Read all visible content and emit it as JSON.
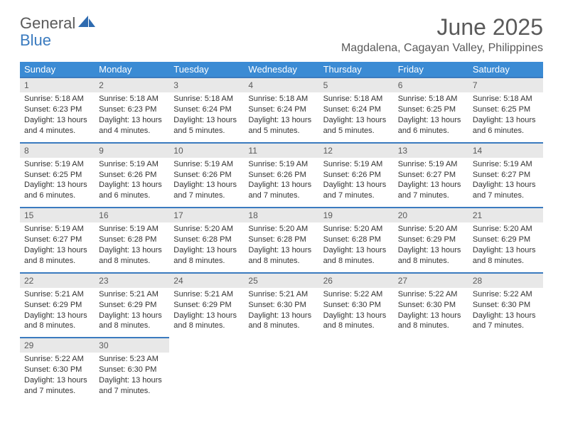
{
  "logo": {
    "word1": "General",
    "word2": "Blue"
  },
  "title": "June 2025",
  "location": "Magdalena, Cagayan Valley, Philippines",
  "headers": [
    "Sunday",
    "Monday",
    "Tuesday",
    "Wednesday",
    "Thursday",
    "Friday",
    "Saturday"
  ],
  "colors": {
    "header_bg": "#3b8bd4",
    "header_text": "#ffffff",
    "rule": "#3b7bbf",
    "daynum_bg": "#e8e8e8",
    "text": "#333333",
    "title_text": "#5a5a5a",
    "logo_gray": "#5a5a5a",
    "logo_blue": "#3b7bbf"
  },
  "weeks": [
    [
      {
        "n": "1",
        "sr": "5:18 AM",
        "ss": "6:23 PM",
        "dl": "13 hours and 4 minutes."
      },
      {
        "n": "2",
        "sr": "5:18 AM",
        "ss": "6:23 PM",
        "dl": "13 hours and 4 minutes."
      },
      {
        "n": "3",
        "sr": "5:18 AM",
        "ss": "6:24 PM",
        "dl": "13 hours and 5 minutes."
      },
      {
        "n": "4",
        "sr": "5:18 AM",
        "ss": "6:24 PM",
        "dl": "13 hours and 5 minutes."
      },
      {
        "n": "5",
        "sr": "5:18 AM",
        "ss": "6:24 PM",
        "dl": "13 hours and 5 minutes."
      },
      {
        "n": "6",
        "sr": "5:18 AM",
        "ss": "6:25 PM",
        "dl": "13 hours and 6 minutes."
      },
      {
        "n": "7",
        "sr": "5:18 AM",
        "ss": "6:25 PM",
        "dl": "13 hours and 6 minutes."
      }
    ],
    [
      {
        "n": "8",
        "sr": "5:19 AM",
        "ss": "6:25 PM",
        "dl": "13 hours and 6 minutes."
      },
      {
        "n": "9",
        "sr": "5:19 AM",
        "ss": "6:26 PM",
        "dl": "13 hours and 6 minutes."
      },
      {
        "n": "10",
        "sr": "5:19 AM",
        "ss": "6:26 PM",
        "dl": "13 hours and 7 minutes."
      },
      {
        "n": "11",
        "sr": "5:19 AM",
        "ss": "6:26 PM",
        "dl": "13 hours and 7 minutes."
      },
      {
        "n": "12",
        "sr": "5:19 AM",
        "ss": "6:26 PM",
        "dl": "13 hours and 7 minutes."
      },
      {
        "n": "13",
        "sr": "5:19 AM",
        "ss": "6:27 PM",
        "dl": "13 hours and 7 minutes."
      },
      {
        "n": "14",
        "sr": "5:19 AM",
        "ss": "6:27 PM",
        "dl": "13 hours and 7 minutes."
      }
    ],
    [
      {
        "n": "15",
        "sr": "5:19 AM",
        "ss": "6:27 PM",
        "dl": "13 hours and 8 minutes."
      },
      {
        "n": "16",
        "sr": "5:19 AM",
        "ss": "6:28 PM",
        "dl": "13 hours and 8 minutes."
      },
      {
        "n": "17",
        "sr": "5:20 AM",
        "ss": "6:28 PM",
        "dl": "13 hours and 8 minutes."
      },
      {
        "n": "18",
        "sr": "5:20 AM",
        "ss": "6:28 PM",
        "dl": "13 hours and 8 minutes."
      },
      {
        "n": "19",
        "sr": "5:20 AM",
        "ss": "6:28 PM",
        "dl": "13 hours and 8 minutes."
      },
      {
        "n": "20",
        "sr": "5:20 AM",
        "ss": "6:29 PM",
        "dl": "13 hours and 8 minutes."
      },
      {
        "n": "21",
        "sr": "5:20 AM",
        "ss": "6:29 PM",
        "dl": "13 hours and 8 minutes."
      }
    ],
    [
      {
        "n": "22",
        "sr": "5:21 AM",
        "ss": "6:29 PM",
        "dl": "13 hours and 8 minutes."
      },
      {
        "n": "23",
        "sr": "5:21 AM",
        "ss": "6:29 PM",
        "dl": "13 hours and 8 minutes."
      },
      {
        "n": "24",
        "sr": "5:21 AM",
        "ss": "6:29 PM",
        "dl": "13 hours and 8 minutes."
      },
      {
        "n": "25",
        "sr": "5:21 AM",
        "ss": "6:30 PM",
        "dl": "13 hours and 8 minutes."
      },
      {
        "n": "26",
        "sr": "5:22 AM",
        "ss": "6:30 PM",
        "dl": "13 hours and 8 minutes."
      },
      {
        "n": "27",
        "sr": "5:22 AM",
        "ss": "6:30 PM",
        "dl": "13 hours and 8 minutes."
      },
      {
        "n": "28",
        "sr": "5:22 AM",
        "ss": "6:30 PM",
        "dl": "13 hours and 7 minutes."
      }
    ],
    [
      {
        "n": "29",
        "sr": "5:22 AM",
        "ss": "6:30 PM",
        "dl": "13 hours and 7 minutes."
      },
      {
        "n": "30",
        "sr": "5:23 AM",
        "ss": "6:30 PM",
        "dl": "13 hours and 7 minutes."
      },
      null,
      null,
      null,
      null,
      null
    ]
  ],
  "labels": {
    "sunrise": "Sunrise: ",
    "sunset": "Sunset: ",
    "daylight": "Daylight: "
  }
}
